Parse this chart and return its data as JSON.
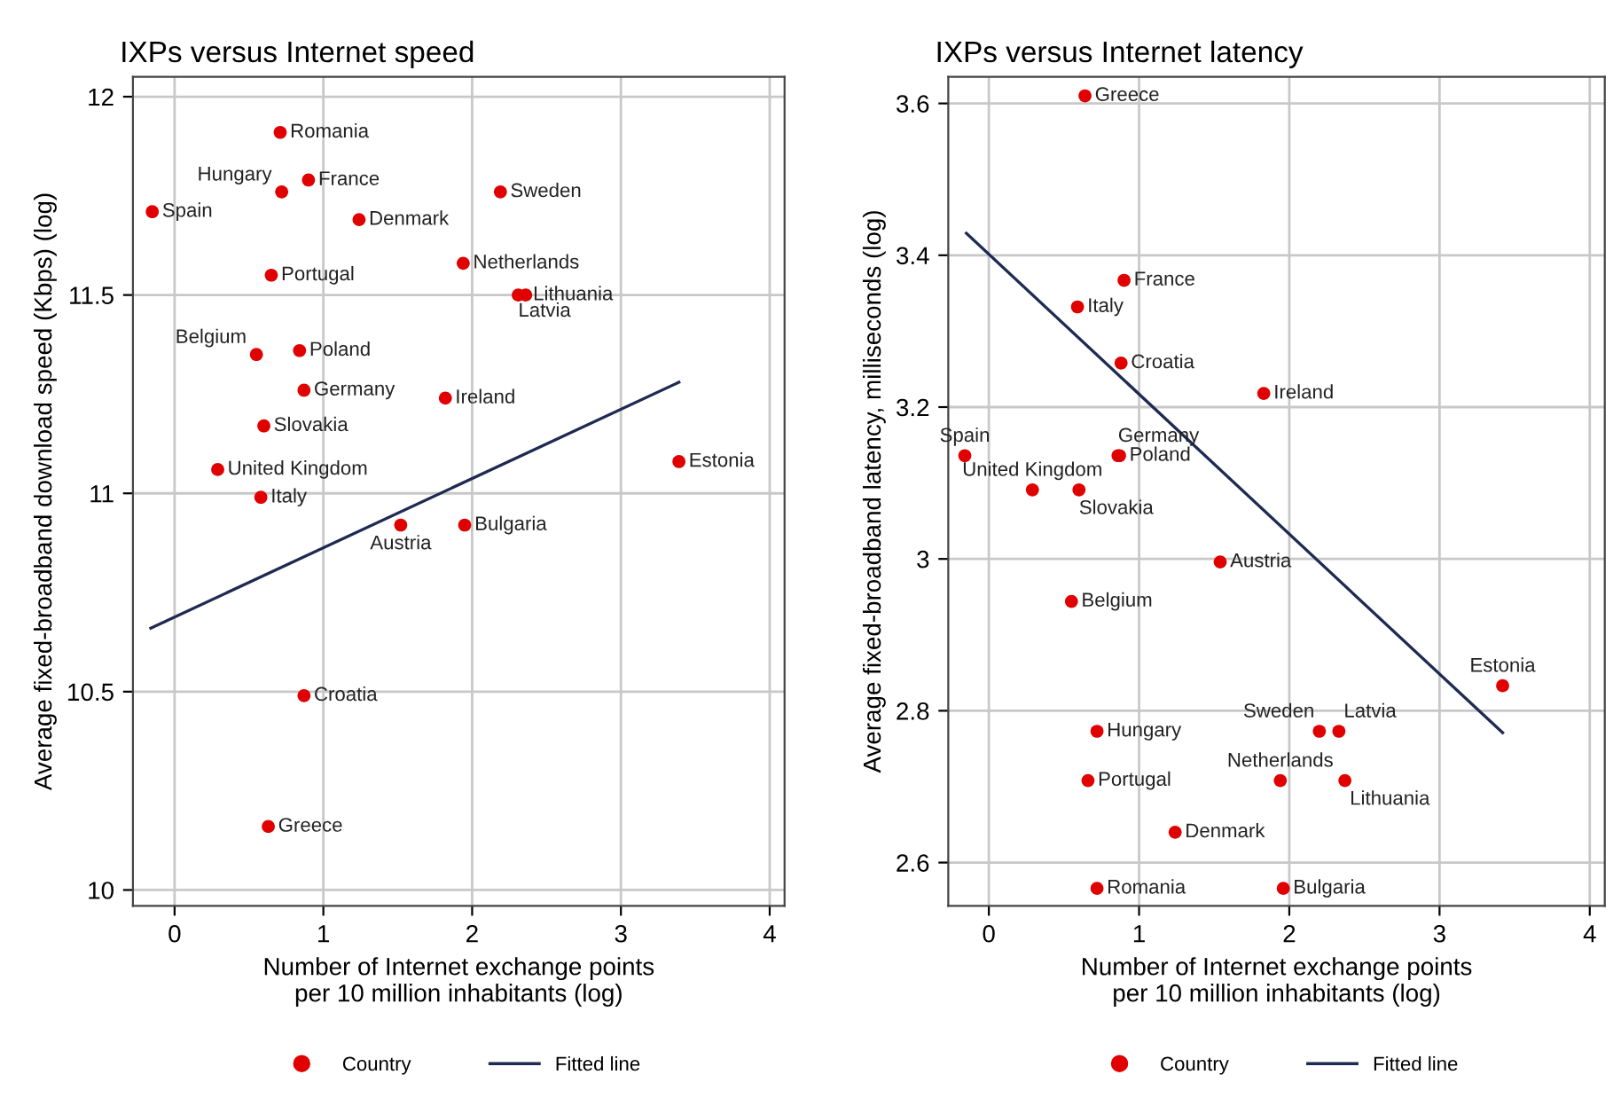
{
  "chart_data": [
    {
      "type": "scatter",
      "title": "IXPs versus Internet speed",
      "xlabel": "Number of Internet exchange points\nper 10 million inhabitants (log)",
      "ylabel": "Average fixed-broadband download speed (Kbps) (log)",
      "xlim": [
        -0.28,
        4.1
      ],
      "ylim": [
        9.96,
        12.05
      ],
      "xticks": [
        0,
        1,
        2,
        3,
        4
      ],
      "yticks": [
        10,
        10.5,
        11,
        11.5,
        12
      ],
      "grid": true,
      "legend": "bottom",
      "series": [
        {
          "name": "Country",
          "marker": "circle",
          "color": "#e00000",
          "x": [
            0.71,
            0.72,
            0.9,
            2.19,
            -0.15,
            1.24,
            1.94,
            0.65,
            2.36,
            2.31,
            0.55,
            0.84,
            0.87,
            1.82,
            0.6,
            0.29,
            3.39,
            0.58,
            1.52,
            1.95,
            0.87,
            0.63
          ],
          "values": [
            11.91,
            11.76,
            11.79,
            11.76,
            11.71,
            11.69,
            11.58,
            11.55,
            11.5,
            11.5,
            11.35,
            11.36,
            11.26,
            11.24,
            11.17,
            11.06,
            11.08,
            10.99,
            10.92,
            10.92,
            10.49,
            10.16
          ]
        },
        {
          "name": "Fitted line",
          "type": "line",
          "marker": "none",
          "color": "#1f2a52",
          "x": [
            -0.16,
            3.39
          ],
          "values": [
            10.66,
            11.28
          ]
        }
      ],
      "annotations": [
        {
          "text": "Romania",
          "x": 0.71,
          "y": 11.91
        },
        {
          "text": "Hungary",
          "x": 0.72,
          "y": 11.76
        },
        {
          "text": "France",
          "x": 0.9,
          "y": 11.79
        },
        {
          "text": "Sweden",
          "x": 2.19,
          "y": 11.76
        },
        {
          "text": "Spain",
          "x": -0.15,
          "y": 11.71
        },
        {
          "text": "Denmark",
          "x": 1.24,
          "y": 11.69
        },
        {
          "text": "Netherlands",
          "x": 1.94,
          "y": 11.58
        },
        {
          "text": "Portugal",
          "x": 0.65,
          "y": 11.55
        },
        {
          "text": "Lithuania",
          "x": 2.36,
          "y": 11.5
        },
        {
          "text": "Latvia",
          "x": 2.31,
          "y": 11.5
        },
        {
          "text": "Belgium",
          "x": 0.55,
          "y": 11.35
        },
        {
          "text": "Poland",
          "x": 0.84,
          "y": 11.36
        },
        {
          "text": "Germany",
          "x": 0.87,
          "y": 11.26
        },
        {
          "text": "Ireland",
          "x": 1.82,
          "y": 11.24
        },
        {
          "text": "Slovakia",
          "x": 0.6,
          "y": 11.17
        },
        {
          "text": "United Kingdom",
          "x": 0.29,
          "y": 11.06
        },
        {
          "text": "Estonia",
          "x": 3.39,
          "y": 11.08
        },
        {
          "text": "Italy",
          "x": 0.58,
          "y": 10.99
        },
        {
          "text": "Austria",
          "x": 1.52,
          "y": 10.92
        },
        {
          "text": "Bulgaria",
          "x": 1.95,
          "y": 10.92
        },
        {
          "text": "Croatia",
          "x": 0.87,
          "y": 10.49
        },
        {
          "text": "Greece",
          "x": 0.63,
          "y": 10.16
        }
      ]
    },
    {
      "type": "scatter",
      "title": "IXPs versus Internet latency",
      "xlabel": "Number of Internet exchange points\nper 10 million inhabitants (log)",
      "ylabel": "Average fixed-broadband latency, milliseconds (log)",
      "xlim": [
        -0.27,
        4.1
      ],
      "ylim": [
        2.543,
        3.635
      ],
      "xticks": [
        0,
        1,
        2,
        3,
        4
      ],
      "yticks": [
        2.6,
        2.8,
        3,
        3.2,
        3.4,
        3.6
      ],
      "grid": true,
      "legend": "bottom",
      "series": [
        {
          "name": "Country",
          "marker": "circle",
          "color": "#e00000",
          "x": [
            0.64,
            0.9,
            0.59,
            0.88,
            1.83,
            -0.16,
            0.86,
            0.87,
            0.29,
            0.6,
            1.54,
            0.55,
            3.42,
            2.2,
            2.33,
            0.72,
            0.66,
            1.94,
            2.37,
            1.24,
            0.72,
            1.96
          ],
          "values": [
            3.61,
            3.367,
            3.332,
            3.258,
            3.218,
            3.136,
            3.136,
            3.136,
            3.091,
            3.091,
            2.996,
            2.944,
            2.833,
            2.773,
            2.773,
            2.773,
            2.708,
            2.708,
            2.708,
            2.64,
            2.566,
            2.566
          ]
        },
        {
          "name": "Fitted line",
          "type": "line",
          "marker": "none",
          "color": "#1f2a52",
          "x": [
            -0.15,
            3.42
          ],
          "values": [
            3.429,
            2.771
          ]
        }
      ],
      "annotations": [
        {
          "text": "Greece",
          "x": 0.64,
          "y": 3.61
        },
        {
          "text": "France",
          "x": 0.9,
          "y": 3.367
        },
        {
          "text": "Italy",
          "x": 0.59,
          "y": 3.332
        },
        {
          "text": "Croatia",
          "x": 0.88,
          "y": 3.258
        },
        {
          "text": "Ireland",
          "x": 1.83,
          "y": 3.218
        },
        {
          "text": "Spain",
          "x": -0.16,
          "y": 3.136
        },
        {
          "text": "Germany",
          "x": 0.86,
          "y": 3.136
        },
        {
          "text": "Poland",
          "x": 0.87,
          "y": 3.136
        },
        {
          "text": "United Kingdom",
          "x": 0.29,
          "y": 3.091
        },
        {
          "text": "Slovakia",
          "x": 0.6,
          "y": 3.091
        },
        {
          "text": "Austria",
          "x": 1.54,
          "y": 2.996
        },
        {
          "text": "Belgium",
          "x": 0.55,
          "y": 2.944
        },
        {
          "text": "Estonia",
          "x": 3.42,
          "y": 2.833
        },
        {
          "text": "Sweden",
          "x": 2.2,
          "y": 2.773
        },
        {
          "text": "Latvia",
          "x": 2.33,
          "y": 2.773
        },
        {
          "text": "Hungary",
          "x": 0.72,
          "y": 2.773
        },
        {
          "text": "Portugal",
          "x": 0.66,
          "y": 2.708
        },
        {
          "text": "Netherlands",
          "x": 1.94,
          "y": 2.708
        },
        {
          "text": "Lithuania",
          "x": 2.37,
          "y": 2.708
        },
        {
          "text": "Denmark",
          "x": 1.24,
          "y": 2.64
        },
        {
          "text": "Romania",
          "x": 0.72,
          "y": 2.566
        },
        {
          "text": "Bulgaria",
          "x": 1.96,
          "y": 2.566
        }
      ]
    }
  ]
}
